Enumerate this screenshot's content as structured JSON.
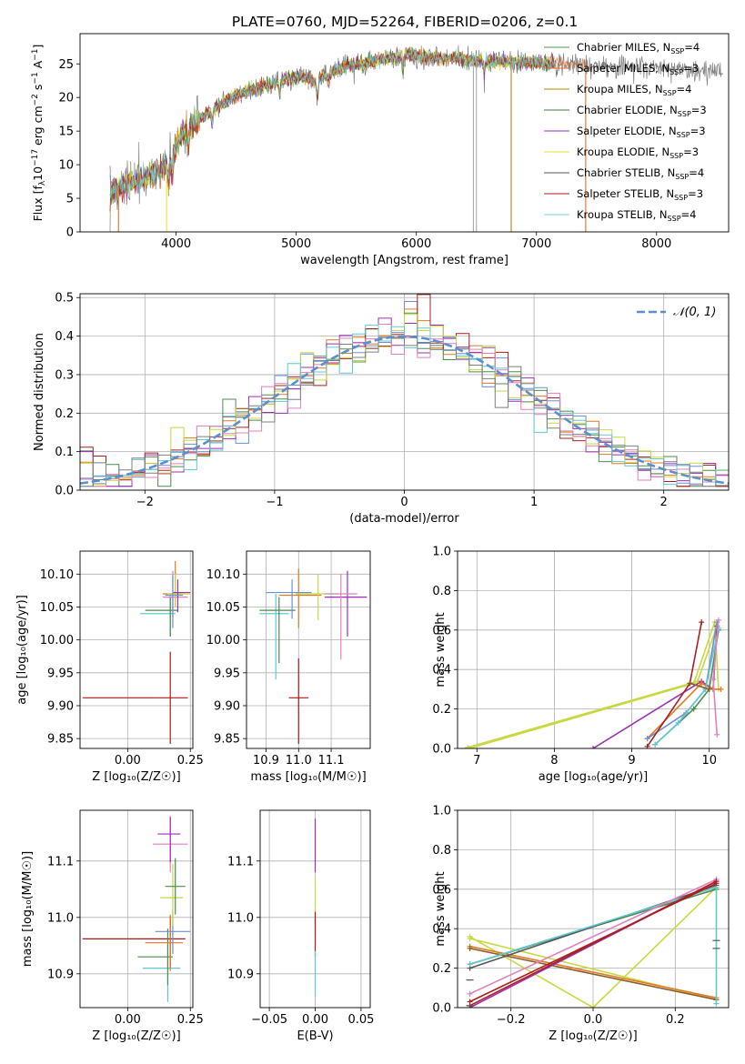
{
  "figure": {
    "title": "PLATE=0760, MJD=52264, FIBERID=0206, z=0.1"
  },
  "colors": {
    "series": [
      "#4c9a4c",
      "#e0702a",
      "#b8860b",
      "#3f7f3f",
      "#9b30b0",
      "#e8e030",
      "#555555",
      "#b01818",
      "#6fd0d8"
    ],
    "ssp_lines": [
      "#6a8fd8",
      "#e07a20",
      "#4c8c4c",
      "#a82020",
      "#9b30b0",
      "#8b5a2b",
      "#e080c0",
      "#7f7f7f",
      "#c8d840",
      "#60c8d0"
    ],
    "normal_fit": "#5b8fd0"
  },
  "chart_data": [
    {
      "panel": "spectrum",
      "type": "line",
      "xlabel": "wavelength [Angstrom, rest frame]",
      "ylabel": "Flux [f",
      "ylabel_sub": "λ",
      "ylabel_mid": "10",
      "ylabel_sup1": "−17",
      "ylabel_tail": " erg cm",
      "ylabel_sup2": "−2",
      "ylabel_tail2": " s",
      "ylabel_sup3": "−1",
      "ylabel_tail3": " A",
      "ylabel_sup4": "−1",
      "ylabel_end": "]",
      "xlim": [
        3200,
        8600
      ],
      "ylim": [
        0,
        29.5
      ],
      "xticks": [
        4000,
        5000,
        6000,
        7000,
        8000
      ],
      "yticks": [
        0,
        5,
        10,
        15,
        20,
        25
      ],
      "continuum": {
        "x": [
          3450,
          3550,
          3650,
          3750,
          3850,
          3950,
          4050,
          4150,
          4250,
          4350,
          4450,
          4550,
          4650,
          4750,
          4850,
          4950,
          5050,
          5150,
          5250,
          5350,
          5450,
          5550,
          5650,
          5750,
          5850,
          5950,
          6050,
          6150,
          6250,
          6350,
          6450,
          6550,
          6650,
          6750,
          6850,
          6950,
          7050,
          7150,
          7250,
          7350,
          7450,
          7550,
          7650,
          7750,
          7850,
          7950,
          8050,
          8150,
          8250,
          8350,
          8450,
          8550
        ],
        "y": [
          6.2,
          6.8,
          7.5,
          8.2,
          9.0,
          10.5,
          14.5,
          16.0,
          17.5,
          18.8,
          19.8,
          20.7,
          21.3,
          21.8,
          22.4,
          23.0,
          23.2,
          22.5,
          23.4,
          24.3,
          24.8,
          25.0,
          25.3,
          25.7,
          26.2,
          26.3,
          26.0,
          25.9,
          25.9,
          25.8,
          25.5,
          25.4,
          25.3,
          25.3,
          25.2,
          25.2,
          25.1,
          25.1,
          25.0,
          24.9,
          24.8,
          24.7,
          24.6,
          24.6,
          24.5,
          24.4,
          24.3,
          24.3,
          24.2,
          24.1,
          24.0,
          23.9
        ]
      },
      "drops": [
        {
          "x": 3520,
          "color": "#e0702a"
        },
        {
          "x": 3920,
          "color": "#e8e030"
        },
        {
          "x": 6475,
          "color": "#aaaaaa"
        },
        {
          "x": 6500,
          "color": "#aaaaaa"
        },
        {
          "x": 6790,
          "color": "#b8860b"
        },
        {
          "x": 7410,
          "color": "#e0702a"
        }
      ],
      "legend": [
        {
          "name": "Chabrier MILES, N",
          "sub": "SSP",
          "tail": "=4"
        },
        {
          "name": "Salpeter MILES, N",
          "sub": "SSP",
          "tail": "=3"
        },
        {
          "name": "Kroupa MILES, N",
          "sub": "SSP",
          "tail": "=4"
        },
        {
          "name": "Chabrier ELODIE, N",
          "sub": "SSP",
          "tail": "=3"
        },
        {
          "name": "Salpeter ELODIE, N",
          "sub": "SSP",
          "tail": "=3"
        },
        {
          "name": "Kroupa ELODIE, N",
          "sub": "SSP",
          "tail": "=3"
        },
        {
          "name": "Chabrier STELIB, N",
          "sub": "SSP",
          "tail": "=4"
        },
        {
          "name": "Salpeter STELIB, N",
          "sub": "SSP",
          "tail": "=3"
        },
        {
          "name": "Kroupa STELIB, N",
          "sub": "SSP",
          "tail": "=4"
        }
      ]
    },
    {
      "panel": "residuals",
      "type": "histogram",
      "xlabel": "(data-model)/error",
      "ylabel": "Normed distribution",
      "xlim": [
        -2.5,
        2.5
      ],
      "ylim": [
        0,
        0.51
      ],
      "xticks": [
        -2,
        -1,
        0,
        1,
        2
      ],
      "xtick_labels": [
        "−2",
        "−1",
        "0",
        "1",
        "2"
      ],
      "yticks": [
        0.0,
        0.1,
        0.2,
        0.3,
        0.4,
        0.5
      ],
      "ytick_labels": [
        "0.0",
        "0.1",
        "0.2",
        "0.3",
        "0.4",
        "0.5"
      ],
      "bin_width": 0.1,
      "legend": {
        "label": "𝒩(0, 1)"
      },
      "spike_values": [
        0.49,
        0.47,
        0.46,
        0.4
      ]
    },
    {
      "panel": "age_vs_Z",
      "type": "errorbar",
      "xlabel": "Z [log₁₀(Z/Z☉)]",
      "ylabel": "age  [log₁₀(age/yr)]",
      "xlim": [
        -0.19,
        0.26
      ],
      "ylim": [
        9.835,
        10.135
      ],
      "xticks": [
        0.0,
        0.25
      ],
      "xtick_labels": [
        "0.00",
        "0.25"
      ],
      "yticks": [
        9.85,
        9.9,
        9.95,
        10.0,
        10.05,
        10.1
      ],
      "ytick_labels": [
        "9.85",
        "9.90",
        "9.95",
        "10.00",
        "10.05",
        "10.10"
      ]
    },
    {
      "panel": "age_vs_mass",
      "type": "errorbar",
      "xlabel": "mass [log₁₀(M/M☉)]",
      "xlim": [
        10.84,
        11.22
      ],
      "ylim": [
        9.835,
        10.135
      ],
      "xticks": [
        10.9,
        11.0,
        11.1
      ],
      "xtick_labels": [
        "10.9",
        "11.0",
        "11.1"
      ],
      "yticks": [
        9.85,
        9.9,
        9.95,
        10.0,
        10.05,
        10.1
      ],
      "ytick_labels": [
        "9.85",
        "9.90",
        "9.95",
        "10.00",
        "10.05",
        "10.10"
      ]
    },
    {
      "panel": "massweight_vs_age",
      "type": "line",
      "xlabel": "age  [log₁₀(age/yr)]",
      "ylabel": "mass weight",
      "xlim": [
        6.75,
        10.25
      ],
      "ylim": [
        0,
        1.0
      ],
      "xticks": [
        7,
        8,
        9,
        10
      ],
      "xtick_labels": [
        "7",
        "8",
        "9",
        "10"
      ],
      "yticks": [
        0.0,
        0.2,
        0.4,
        0.6,
        0.8,
        1.0
      ],
      "ytick_labels": [
        "0.0",
        "0.2",
        "0.4",
        "0.6",
        "0.8",
        "1.0"
      ]
    },
    {
      "panel": "mass_vs_Z",
      "type": "errorbar",
      "xlabel": "Z [log₁₀(Z/Z☉)]",
      "ylabel": "mass [log₁₀(M/M☉)]",
      "xlim": [
        -0.19,
        0.26
      ],
      "ylim": [
        10.84,
        11.19
      ],
      "xticks": [
        0.0,
        0.25
      ],
      "xtick_labels": [
        "0.00",
        "0.25"
      ],
      "yticks": [
        10.9,
        11.0,
        11.1
      ],
      "ytick_labels": [
        "10.9",
        "11.0",
        "11.1"
      ]
    },
    {
      "panel": "mass_vs_EBV",
      "type": "errorbar",
      "xlabel": "E(B-V)",
      "xlim": [
        -0.06,
        0.06
      ],
      "ylim": [
        10.84,
        11.19
      ],
      "xticks": [
        -0.05,
        0.0,
        0.05
      ],
      "xtick_labels": [
        "−0.05",
        "0.00",
        "0.05"
      ],
      "yticks": [
        10.9,
        11.0,
        11.1
      ],
      "ytick_labels": [
        "10.9",
        "11.0",
        "11.1"
      ]
    },
    {
      "panel": "massweight_vs_Z",
      "type": "line",
      "xlabel": "Z [log₁₀(Z/Z☉)]",
      "ylabel": "mass weight",
      "xlim": [
        -0.33,
        0.33
      ],
      "ylim": [
        0,
        1.0
      ],
      "xticks": [
        -0.2,
        0.0,
        0.2
      ],
      "xtick_labels": [
        "−0.2",
        "0.0",
        "0.2"
      ],
      "yticks": [
        0.0,
        0.2,
        0.4,
        0.6,
        0.8,
        1.0
      ],
      "ytick_labels": [
        "0.0",
        "0.2",
        "0.4",
        "0.6",
        "0.8",
        "1.0"
      ]
    }
  ]
}
